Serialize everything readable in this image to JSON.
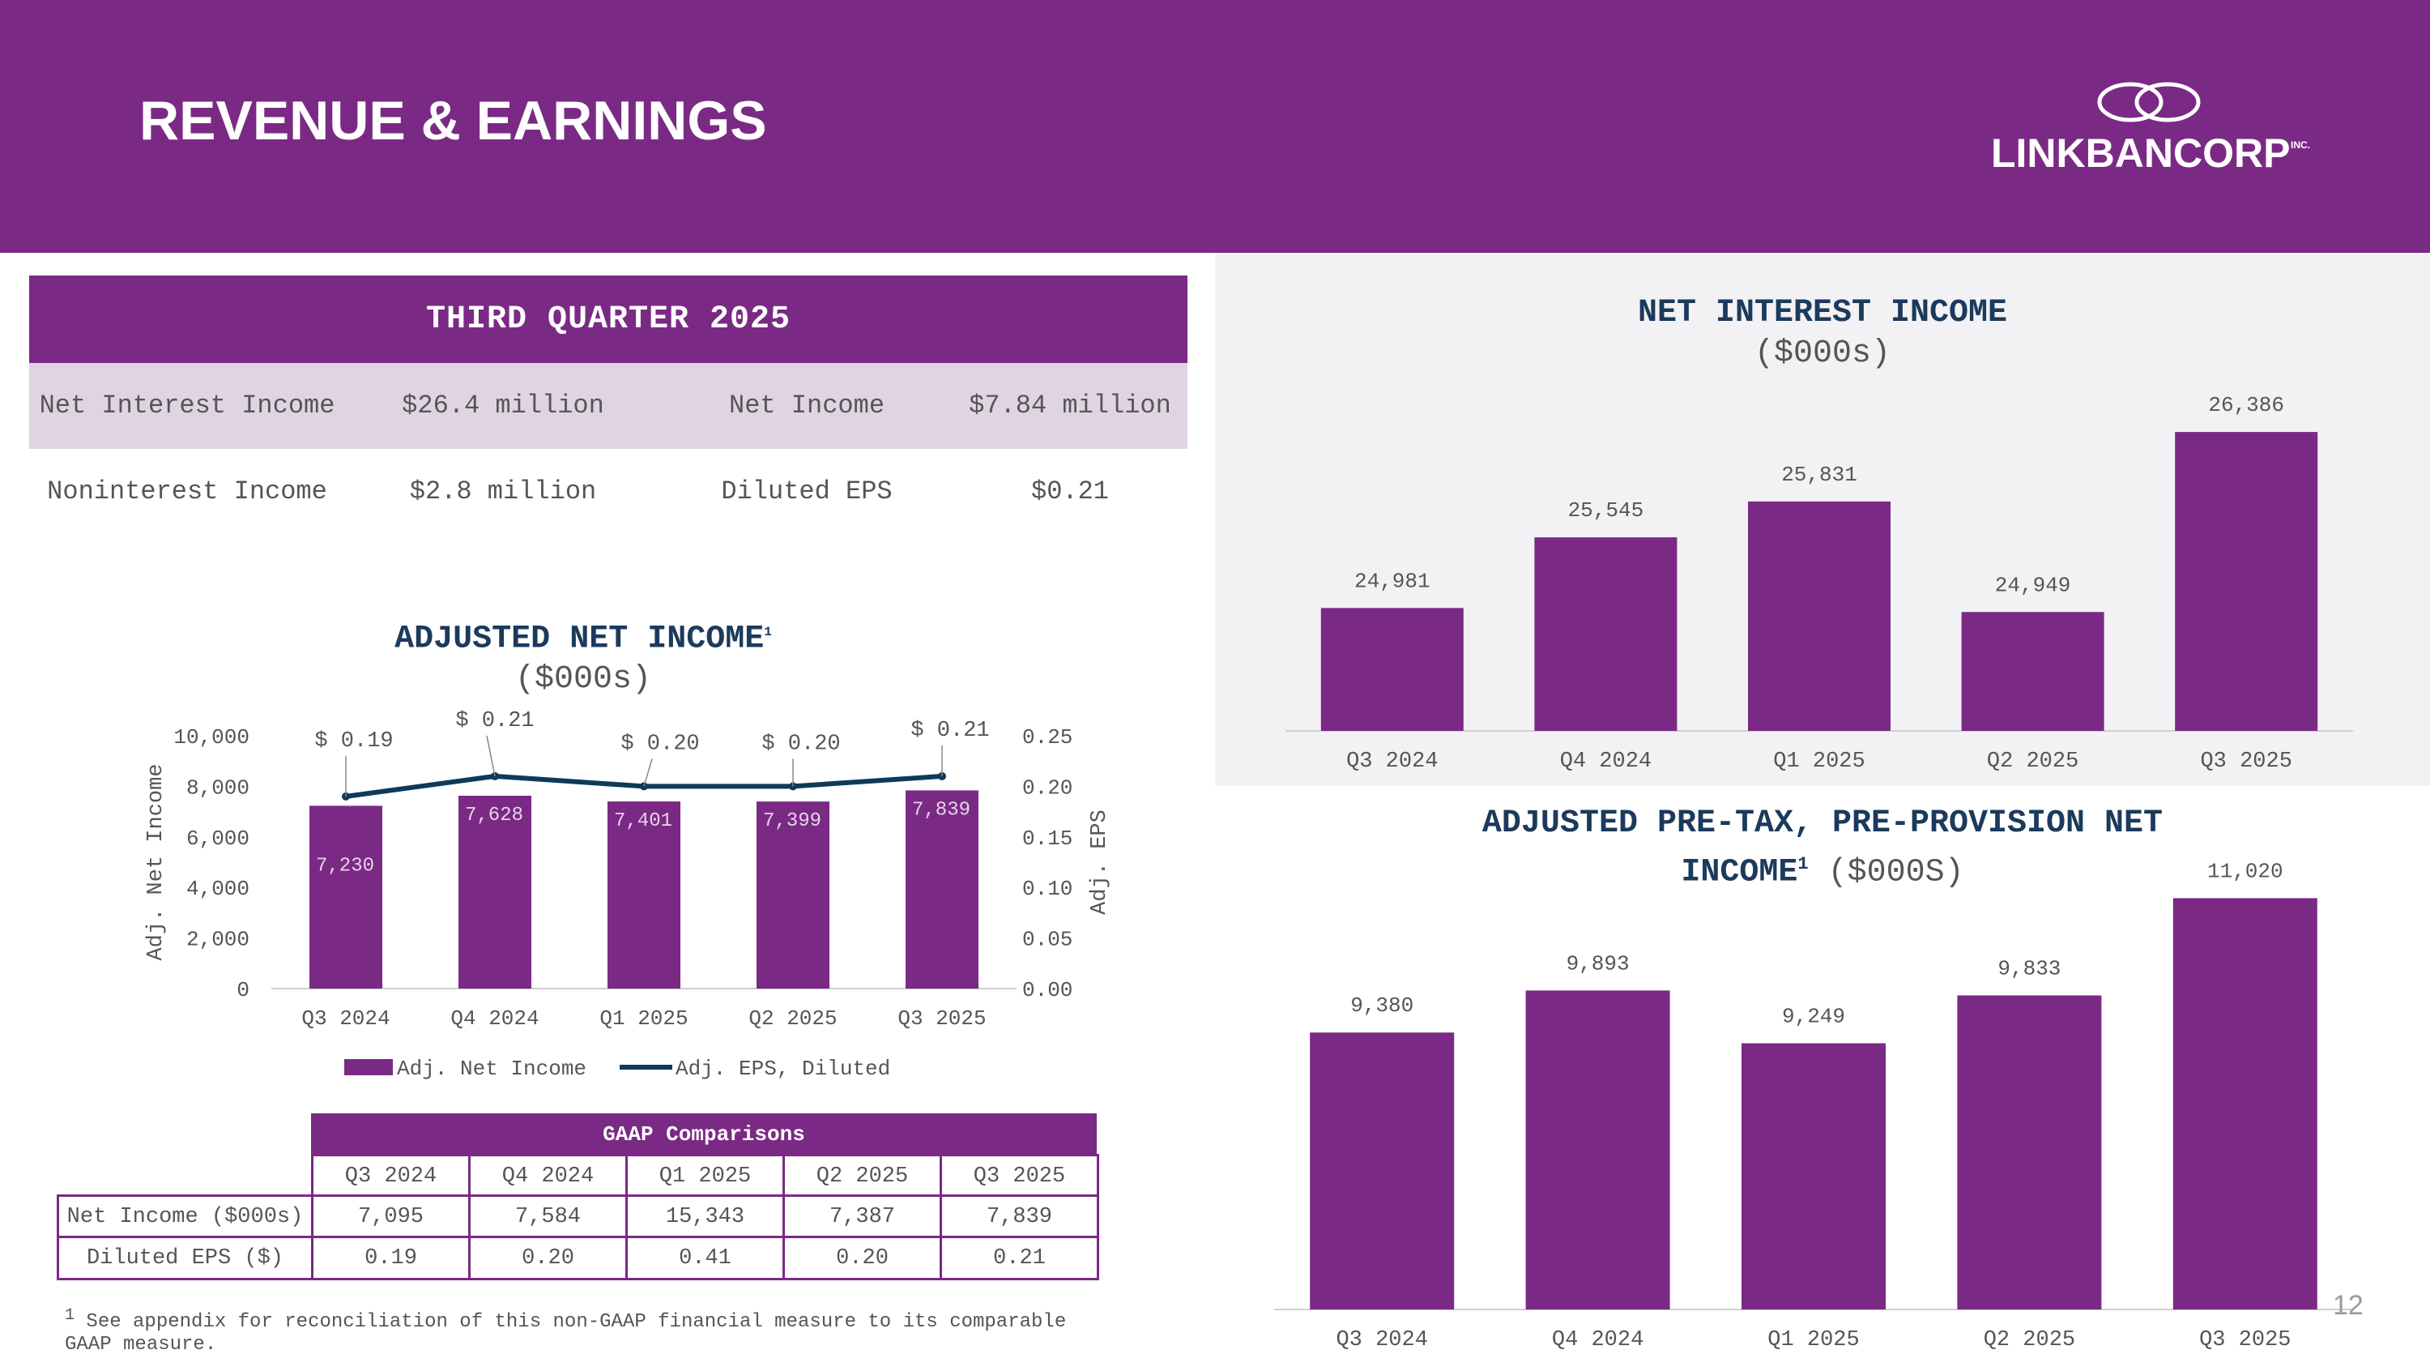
{
  "header": {
    "title": "REVENUE & EARNINGS",
    "logo_text": "LINKBANCORP",
    "logo_inc": "INC."
  },
  "summary": {
    "title": "THIRD QUARTER 2025",
    "rows": [
      {
        "label1": "Net Interest Income",
        "value1": "$26.4 million",
        "label2": "Net Income",
        "value2": "$7.84 million"
      },
      {
        "label1": "Noninterest Income",
        "value1": "$2.8 million",
        "label2": "Diluted EPS",
        "value2": "$0.21"
      }
    ]
  },
  "colors": {
    "brand": "#7a2a84",
    "navy": "#0d3a5a",
    "shade": "#e0d4e3"
  },
  "chart_data": [
    {
      "type": "bar+line",
      "title": "ADJUSTED NET INCOME",
      "title_sup": "1",
      "subtitle": "($000s)",
      "categories": [
        "Q3 2024",
        "Q4 2024",
        "Q1 2025",
        "Q2 2025",
        "Q3 2025"
      ],
      "series": [
        {
          "name": "Adj. Net Income",
          "type": "bar",
          "axis": "left",
          "values": [
            7230,
            7628,
            7401,
            7399,
            7839
          ],
          "labels": [
            "7,230",
            "7,628",
            "7,401",
            "7,399",
            "7,839"
          ]
        },
        {
          "name": "Adj. EPS, Diluted",
          "type": "line",
          "axis": "right",
          "values": [
            0.19,
            0.21,
            0.2,
            0.2,
            0.21
          ],
          "labels": [
            "$ 0.19",
            "$ 0.21",
            "$ 0.20",
            "$ 0.20",
            "$ 0.21"
          ]
        }
      ],
      "ylabel": "Adj. Net Income",
      "y2label": "Adj. EPS",
      "ylim": [
        0,
        10000
      ],
      "y2lim": [
        0,
        0.25
      ],
      "yticks": [
        "0",
        "2,000",
        "4,000",
        "6,000",
        "8,000",
        "10,000"
      ],
      "y2ticks": [
        "0.00",
        "0.05",
        "0.10",
        "0.15",
        "0.20",
        "0.25"
      ],
      "legend": [
        "Adj. Net Income",
        "Adj. EPS, Diluted"
      ]
    },
    {
      "type": "bar",
      "title": "NET INTEREST INCOME",
      "subtitle": "($000s)",
      "categories": [
        "Q3 2024",
        "Q4 2024",
        "Q1 2025",
        "Q2 2025",
        "Q3 2025"
      ],
      "values": [
        24981,
        25545,
        25831,
        24949,
        26386
      ],
      "labels": [
        "24,981",
        "25,545",
        "25,831",
        "24,949",
        "26,386"
      ],
      "ylim": [
        24000,
        26600
      ]
    },
    {
      "type": "bar",
      "title": "ADJUSTED PRE-TAX, PRE-PROVISION NET",
      "title2": "INCOME",
      "title_sup": "1",
      "subtitle": "($000S)",
      "categories": [
        "Q3 2024",
        "Q4 2024",
        "Q1 2025",
        "Q2 2025",
        "Q3 2025"
      ],
      "values": [
        9380,
        9893,
        9249,
        9833,
        11020
      ],
      "labels": [
        "9,380",
        "9,893",
        "9,249",
        "9,833",
        "11,020"
      ],
      "ylim": [
        6000,
        11400
      ]
    }
  ],
  "gaap": {
    "title": "GAAP Comparisons",
    "columns": [
      "Q3 2024",
      "Q4 2024",
      "Q1 2025",
      "Q2 2025",
      "Q3 2025"
    ],
    "rows": [
      {
        "label": "Net Income ($000s)",
        "values": [
          "7,095",
          "7,584",
          "15,343",
          "7,387",
          "7,839"
        ]
      },
      {
        "label": "Diluted EPS ($)",
        "values": [
          "0.19",
          "0.20",
          "0.41",
          "0.20",
          "0.21"
        ]
      }
    ]
  },
  "footnote": {
    "sup": "1",
    "text": " See appendix for reconciliation of this non-GAAP financial measure to its comparable GAAP measure."
  },
  "page_number": "12"
}
